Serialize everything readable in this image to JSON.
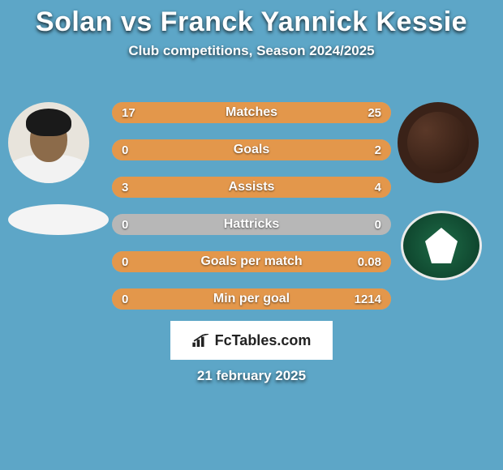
{
  "background_color": "#5da6c7",
  "text_color": "#ffffff",
  "title": "Solan vs Franck Yannick Kessie",
  "title_fontsize": 34,
  "subtitle": "Club competitions, Season 2024/2025",
  "subtitle_fontsize": 17,
  "bar_colors": {
    "background": "#b7b7b7",
    "left_fill": "#e3974b",
    "right_fill": "#e3974b",
    "border_radius": 13
  },
  "stats": [
    {
      "label": "Matches",
      "left_val": "17",
      "right_val": "25",
      "left_pct": 40,
      "right_pct": 60
    },
    {
      "label": "Goals",
      "left_val": "0",
      "right_val": "2",
      "left_pct": 0,
      "right_pct": 100
    },
    {
      "label": "Assists",
      "left_val": "3",
      "right_val": "4",
      "left_pct": 43,
      "right_pct": 57
    },
    {
      "label": "Hattricks",
      "left_val": "0",
      "right_val": "0",
      "left_pct": 0,
      "right_pct": 0
    },
    {
      "label": "Goals per match",
      "left_val": "0",
      "right_val": "0.08",
      "left_pct": 0,
      "right_pct": 100
    },
    {
      "label": "Min per goal",
      "left_val": "0",
      "right_val": "1214",
      "left_pct": 0,
      "right_pct": 100
    }
  ],
  "watermark": "FcTables.com",
  "date_text": "21 february 2025",
  "club_colors": {
    "left_bg": "#f4f4f4",
    "right_bg": "#1e6b47",
    "right_border": "#eaeaea"
  },
  "avatar_colors": {
    "left_bg": "#e8e4dc",
    "right_bg": "#3a2218"
  }
}
